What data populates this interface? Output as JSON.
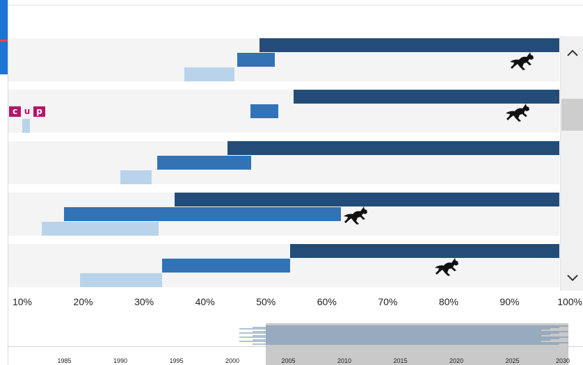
{
  "colors": {
    "series_dark": "#234d78",
    "series_mid": "#3273b5",
    "series_light": "#b9d3ea",
    "band": "#f4f4f4",
    "logo": "#b3156a",
    "accent": "#1e74d4"
  },
  "logo": {
    "letters": [
      "c",
      "u",
      "p"
    ]
  },
  "scrollbar": {
    "up_icon": "chevron-up-icon",
    "down_icon": "chevron-down-icon"
  },
  "chart_data": {
    "type": "bar",
    "orientation": "horizontal",
    "xlim": [
      10,
      100
    ],
    "x_ticks": [
      "10%",
      "20%",
      "30%",
      "40%",
      "50%",
      "60%",
      "70%",
      "80%",
      "90%",
      "100%"
    ],
    "rows": [
      {
        "bars": [
          {
            "series": "dark",
            "start": 49,
            "end": 100
          },
          {
            "series": "mid",
            "start": 45.3,
            "end": 51.5
          },
          {
            "series": "light",
            "start": 36.6,
            "end": 44.8
          }
        ],
        "marker": {
          "icon": "horse-icon",
          "value": 92.3
        }
      },
      {
        "bars": [
          {
            "series": "dark",
            "start": 54.5,
            "end": 100
          },
          {
            "series": "mid",
            "start": 47.5,
            "end": 52
          },
          {
            "series": "light",
            "start": 10,
            "end": 11.3
          }
        ],
        "marker": {
          "icon": "horse-icon",
          "value": 91.7
        }
      },
      {
        "bars": [
          {
            "series": "dark",
            "start": 43.7,
            "end": 100
          },
          {
            "series": "mid",
            "start": 32.2,
            "end": 47.6
          },
          {
            "series": "light",
            "start": 26.1,
            "end": 31.3
          }
        ],
        "marker": null
      },
      {
        "bars": [
          {
            "series": "dark",
            "start": 35,
            "end": 100
          },
          {
            "series": "mid",
            "start": 16.9,
            "end": 62.3
          },
          {
            "series": "light",
            "start": 13.2,
            "end": 32.4
          }
        ],
        "marker": {
          "icon": "horse-icon",
          "value": 65.1
        }
      },
      {
        "bars": [
          {
            "series": "dark",
            "start": 54,
            "end": 100
          },
          {
            "series": "mid",
            "start": 33,
            "end": 54
          },
          {
            "series": "light",
            "start": 19.5,
            "end": 33
          }
        ],
        "marker": {
          "icon": "horse-icon",
          "value": 80
        }
      }
    ]
  },
  "timeline": {
    "range": [
      1980,
      2030
    ],
    "ticks": [
      "1985",
      "1990",
      "1995",
      "2000",
      "2005",
      "2010",
      "2015",
      "2020",
      "2025",
      "2030"
    ],
    "selection": [
      2003,
      2030
    ]
  }
}
